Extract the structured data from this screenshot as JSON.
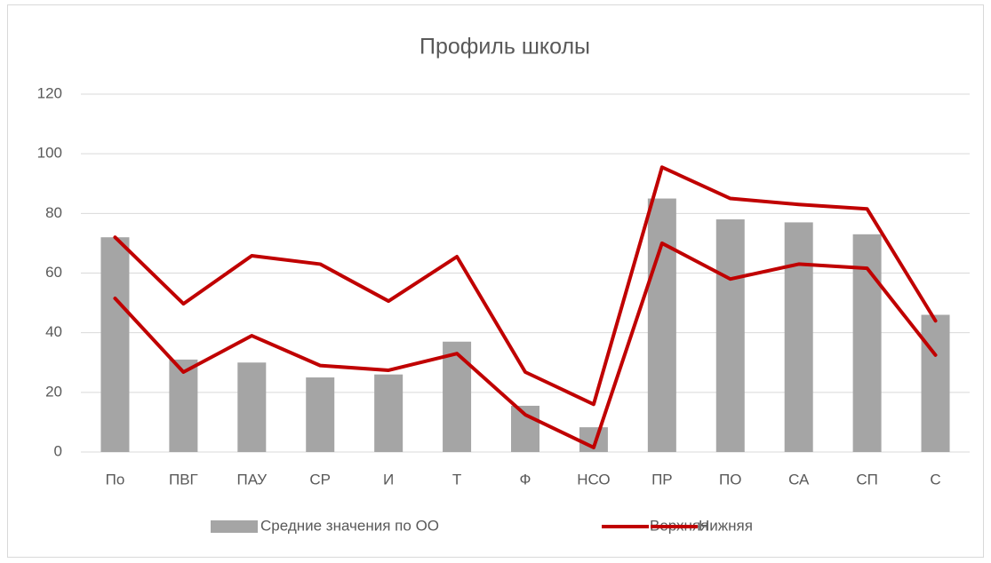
{
  "chart_data": {
    "type": "bar",
    "title": "Профиль школы",
    "categories": [
      "По",
      "ПВГ",
      "ПАУ",
      "СР",
      "И",
      "Т",
      "Ф",
      "НСО",
      "ПР",
      "ПО",
      "СА",
      "СП",
      "С"
    ],
    "series": [
      {
        "name": "Средние значения по ОО",
        "type": "bar",
        "color": "#a5a5a5",
        "values": [
          72,
          31,
          30,
          25,
          26,
          37,
          15.5,
          8.3,
          85,
          78,
          77,
          73,
          46
        ]
      },
      {
        "name": "Верхняя",
        "type": "line",
        "color": "#c00000",
        "values": [
          72,
          49.7,
          65.8,
          63,
          50.6,
          65.5,
          26.8,
          16,
          95.5,
          85,
          83,
          81.5,
          44
        ]
      },
      {
        "name": "Нижняя",
        "type": "line",
        "color": "#c00000",
        "values": [
          51.5,
          26.8,
          39,
          29,
          27.4,
          33,
          12.5,
          1.5,
          70,
          58,
          63,
          61.6,
          32.5
        ]
      }
    ],
    "ylim": [
      0,
      120
    ],
    "yticks": [
      0,
      20,
      40,
      60,
      80,
      100,
      120
    ],
    "grid": true,
    "legend": "bottom"
  }
}
